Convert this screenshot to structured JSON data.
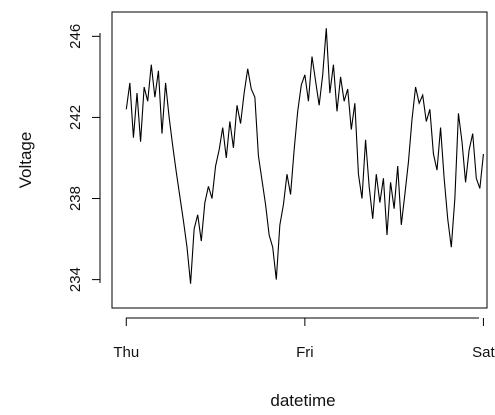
{
  "chart_data": {
    "type": "line",
    "title": "",
    "xlabel": "datetime",
    "ylabel": "Voltage",
    "x_ticks": [
      {
        "label": "Thu",
        "value": 0
      },
      {
        "label": "Fri",
        "value": 1
      },
      {
        "label": "Sat",
        "value": 2
      }
    ],
    "y_ticks": [
      234,
      238,
      242,
      246
    ],
    "xlim": [
      -0.08,
      2.02
    ],
    "ylim": [
      232.6,
      247.2
    ],
    "grid": false,
    "legend": "none",
    "line_color": "#000000",
    "series": [
      {
        "x": [
          0.0,
          0.02,
          0.04,
          0.06,
          0.08,
          0.1,
          0.12,
          0.14,
          0.16,
          0.18,
          0.2,
          0.22,
          0.24,
          0.26,
          0.28,
          0.3,
          0.32,
          0.34,
          0.36,
          0.38,
          0.4,
          0.42,
          0.44,
          0.46,
          0.48,
          0.5,
          0.52,
          0.54,
          0.56,
          0.58,
          0.6,
          0.62,
          0.64,
          0.66,
          0.68,
          0.7,
          0.72,
          0.74,
          0.76,
          0.78,
          0.8,
          0.82,
          0.84,
          0.86,
          0.88,
          0.9,
          0.92,
          0.94,
          0.96,
          0.98,
          1.0,
          1.02,
          1.04,
          1.06,
          1.08,
          1.1,
          1.12,
          1.14,
          1.16,
          1.18,
          1.2,
          1.22,
          1.24,
          1.26,
          1.28,
          1.3,
          1.32,
          1.34,
          1.36,
          1.38,
          1.4,
          1.42,
          1.44,
          1.46,
          1.48,
          1.5,
          1.52,
          1.54,
          1.56,
          1.58,
          1.6,
          1.62,
          1.64,
          1.66,
          1.68,
          1.7,
          1.72,
          1.74,
          1.76,
          1.78,
          1.8,
          1.82,
          1.84,
          1.86,
          1.88,
          1.9,
          1.92,
          1.94,
          1.96,
          1.98,
          2.0
        ],
        "y": [
          242.4,
          243.7,
          241.0,
          243.2,
          240.8,
          243.5,
          242.8,
          244.6,
          243.0,
          244.3,
          241.2,
          243.7,
          242.0,
          240.6,
          239.3,
          238.1,
          236.9,
          235.6,
          233.8,
          236.5,
          237.2,
          235.9,
          237.8,
          238.6,
          238.0,
          239.6,
          240.4,
          241.5,
          240.0,
          241.8,
          240.5,
          242.6,
          241.7,
          243.2,
          244.4,
          243.4,
          243.0,
          240.1,
          238.9,
          237.7,
          236.2,
          235.6,
          234.0,
          236.7,
          237.7,
          239.2,
          238.2,
          240.4,
          242.3,
          243.6,
          244.1,
          242.8,
          245.0,
          243.8,
          242.6,
          244.1,
          246.4,
          243.2,
          244.6,
          242.3,
          244.0,
          242.8,
          243.4,
          241.4,
          242.7,
          239.2,
          238.0,
          240.9,
          238.6,
          237.0,
          239.2,
          237.8,
          239.0,
          236.2,
          238.8,
          237.5,
          239.6,
          236.7,
          238.2,
          239.8,
          241.9,
          243.5,
          242.7,
          243.1,
          241.8,
          242.4,
          240.2,
          239.4,
          241.5,
          239.0,
          237.0,
          235.6,
          238.0,
          242.2,
          240.8,
          238.8,
          240.4,
          241.2,
          239.0,
          238.5,
          240.2
        ]
      }
    ]
  }
}
